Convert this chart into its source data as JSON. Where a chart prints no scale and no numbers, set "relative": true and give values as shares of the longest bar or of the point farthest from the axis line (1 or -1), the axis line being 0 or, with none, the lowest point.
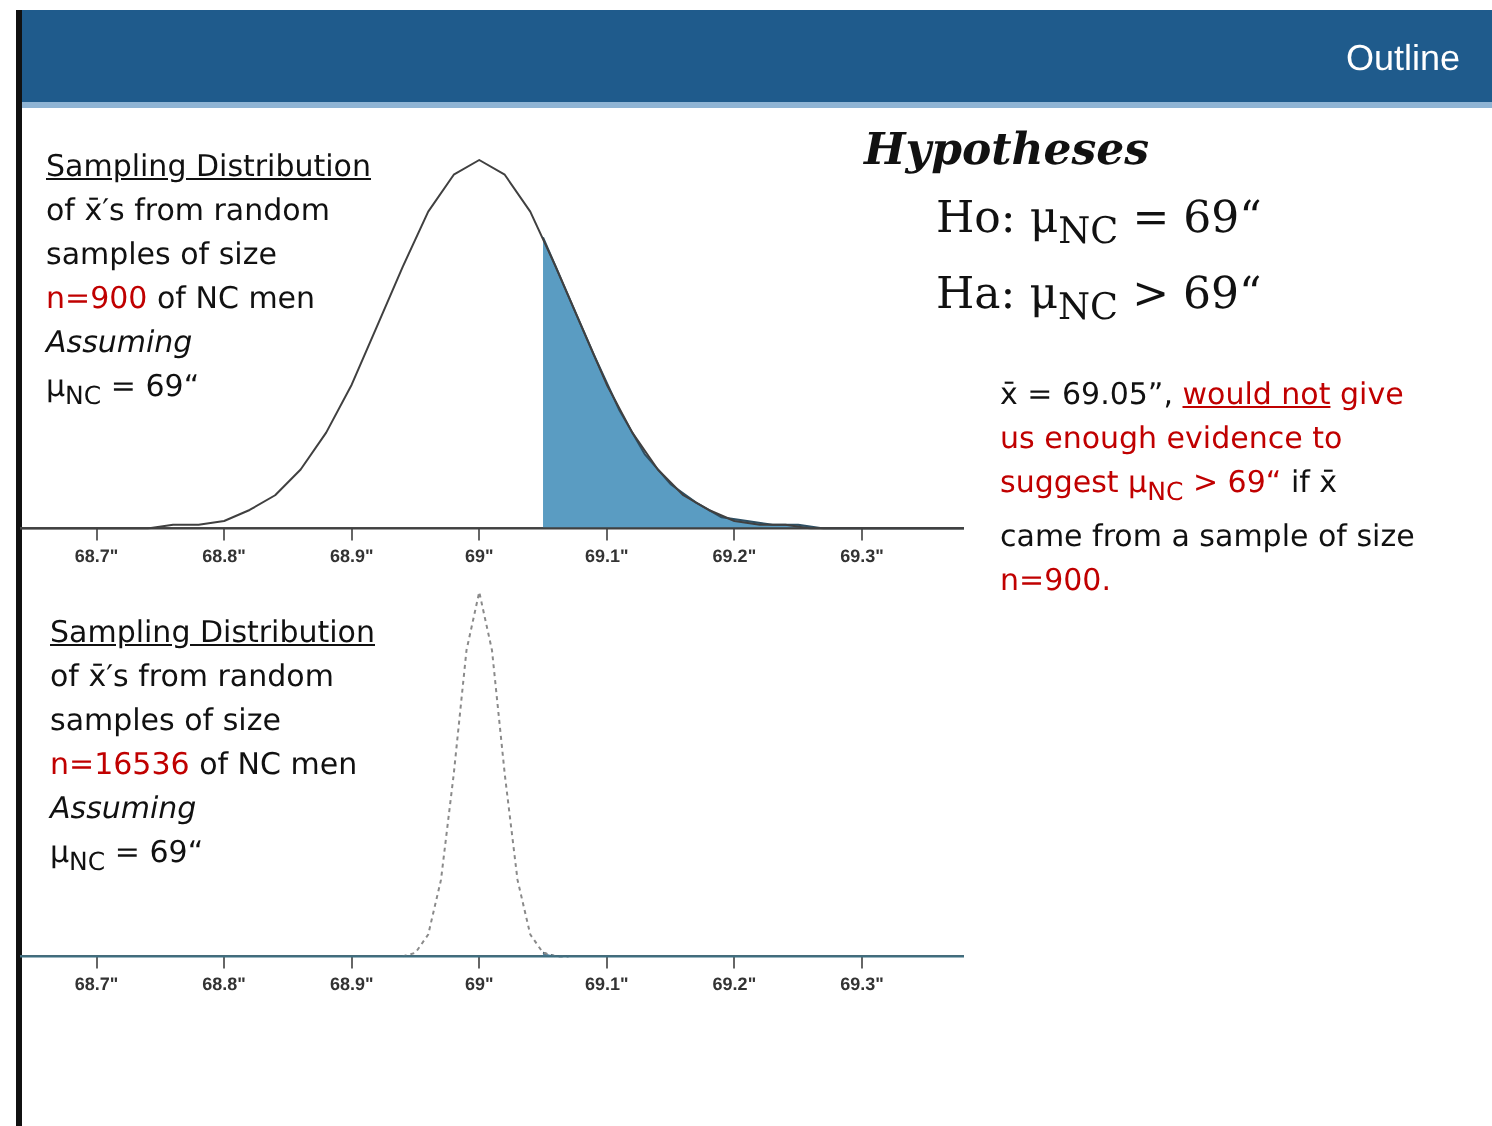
{
  "chart_data": [
    {
      "type": "line",
      "relative": true,
      "xlim": [
        68.64,
        69.38
      ],
      "xticks": [
        {
          "value": 68.7,
          "label": "68.7\""
        },
        {
          "value": 68.8,
          "label": "68.8\""
        },
        {
          "value": 68.9,
          "label": "68.9\""
        },
        {
          "value": 69,
          "label": "69\""
        },
        {
          "value": 69.1,
          "label": "69.1\""
        },
        {
          "value": 69.2,
          "label": "69.2\""
        },
        {
          "value": 69.3,
          "label": "69.3\""
        }
      ],
      "series": [
        {
          "color": "#404040",
          "x": [
            68.64,
            68.66,
            68.68,
            68.7,
            68.72,
            68.74,
            68.76,
            68.78,
            68.8,
            68.82,
            68.84,
            68.86,
            68.88,
            68.9,
            68.92,
            68.94,
            68.96,
            68.98,
            69,
            69.02,
            69.04,
            69.06,
            69.08,
            69.1,
            69.12,
            69.14,
            69.16,
            69.18,
            69.2,
            69.22,
            69.24,
            69.26,
            69.28,
            69.3,
            69.32,
            69.34,
            69.36,
            69.38
          ],
          "values": [
            0,
            0,
            0,
            0,
            0,
            0,
            0.01,
            0.01,
            0.02,
            0.05,
            0.09,
            0.16,
            0.26,
            0.39,
            0.55,
            0.71,
            0.86,
            0.96,
            1,
            0.96,
            0.86,
            0.71,
            0.55,
            0.39,
            0.26,
            0.16,
            0.09,
            0.05,
            0.02,
            0.01,
            0.01,
            0,
            0,
            0,
            0,
            0,
            0,
            0
          ]
        },
        {
          "type": "area",
          "color": "#5a9cc2",
          "x": [
            69.05,
            69.07,
            69.09,
            69.11,
            69.13,
            69.15,
            69.17,
            69.19,
            69.21,
            69.23,
            69.25,
            69.27,
            69.3,
            69.34,
            69.38
          ],
          "values": [
            0.79,
            0.63,
            0.47,
            0.32,
            0.2,
            0.12,
            0.07,
            0.03,
            0.02,
            0.01,
            0.01,
            0,
            0,
            0,
            0
          ]
        }
      ],
      "ref_lines": [
        {
          "axis": "y",
          "value": 0,
          "color": "#404040"
        }
      ],
      "annotations": [
        "Outline",
        "Sampling Distribution",
        "of x̄′s from random",
        "samples of size",
        "n=900",
        "of NC men",
        "Assuming",
        "μ$_{NC}$ = 69“",
        "Hypotheses",
        "Ho: μ$_{NC}$ = 69“",
        "Ha: μ$_{NC}$ > 69“",
        "x̄ = 69.05”,",
        "would not",
        "give us enough evidence to suggest μ$_{NC}$ > 69“",
        "if x̄ came from a sample of size",
        "n=900."
      ]
    },
    {
      "type": "line",
      "relative": true,
      "xlim": [
        68.64,
        69.38
      ],
      "line_style": "dotted",
      "xticks": [
        {
          "value": 68.7,
          "label": "68.7\""
        },
        {
          "value": 68.8,
          "label": "68.8\""
        },
        {
          "value": 68.9,
          "label": "68.9\""
        },
        {
          "value": 69,
          "label": "69\""
        },
        {
          "value": 69.1,
          "label": "69.1\""
        },
        {
          "value": 69.2,
          "label": "69.2\""
        },
        {
          "value": 69.3,
          "label": "69.3\""
        }
      ],
      "series": [
        {
          "color": "#8a8a8a",
          "x": [
            68.94,
            68.95,
            68.96,
            68.97,
            68.98,
            68.99,
            69,
            69.01,
            69.02,
            69.03,
            69.04,
            69.05,
            69.06,
            69.07
          ],
          "values": [
            0,
            0.01,
            0.06,
            0.21,
            0.5,
            0.84,
            1,
            0.84,
            0.5,
            0.21,
            0.06,
            0.01,
            0,
            0
          ]
        },
        {
          "type": "area",
          "color": "#4f87a8",
          "x": [
            69.05,
            69.06,
            69.07
          ],
          "values": [
            0.01,
            0,
            0
          ]
        }
      ],
      "ref_lines": [
        {
          "axis": "y",
          "value": 0,
          "color": "#3d6e80"
        }
      ],
      "annotations": [
        "Sampling Distribution",
        "of x̄′s from random",
        "samples of size",
        "n=16536",
        "of NC men",
        "Assuming",
        "μ$_{NC}$ = 69“"
      ]
    }
  ]
}
